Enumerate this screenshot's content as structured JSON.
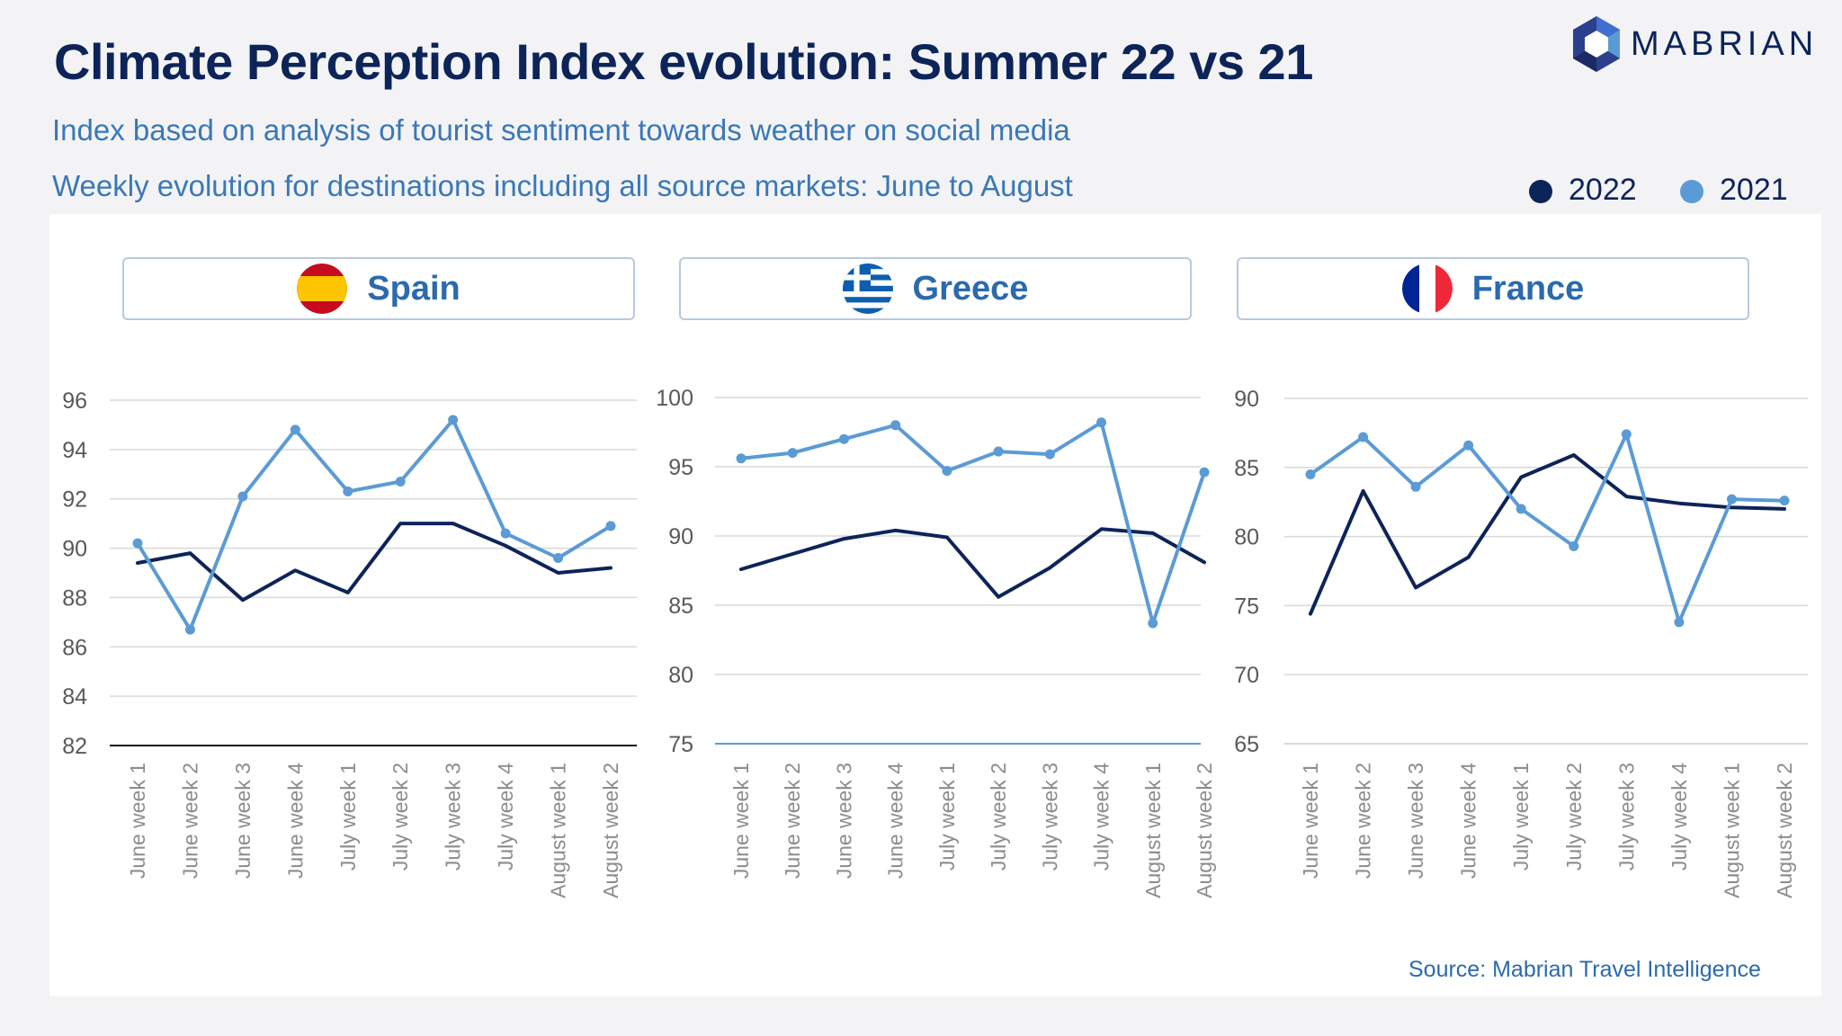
{
  "header": {
    "title": "Climate Perception Index evolution: Summer 22 vs 21",
    "subtitle1": "Index based on analysis of tourist sentiment towards weather on social media",
    "subtitle2": "Weekly evolution for destinations including all source markets: June to August"
  },
  "brand": {
    "name": "MABRIAN",
    "logo_icon": "hexagon-logo-icon"
  },
  "legend": [
    {
      "label": "2022",
      "color": "#0d2459"
    },
    {
      "label": "2021",
      "color": "#5b9bd5"
    }
  ],
  "source": "Source: Mabrian Travel Intelligence",
  "chart_data": [
    {
      "type": "line",
      "country": "Spain",
      "flag_icon": "spain-flag-icon",
      "categories": [
        "June week 1",
        "June week 2",
        "June week 3",
        "June week 4",
        "July week 1",
        "July week 2",
        "July week 3",
        "July week 4",
        "August week 1",
        "August week 2"
      ],
      "ylim": [
        82,
        96
      ],
      "yticks": [
        82,
        84,
        86,
        88,
        90,
        92,
        94,
        96
      ],
      "series": [
        {
          "name": "2022",
          "color": "#0d2459",
          "values": [
            89.4,
            89.8,
            87.9,
            89.1,
            88.2,
            91.0,
            91.0,
            90.1,
            89.0,
            89.2
          ]
        },
        {
          "name": "2021",
          "color": "#5b9bd5",
          "values": [
            90.2,
            86.7,
            92.1,
            94.8,
            92.3,
            92.7,
            95.2,
            90.6,
            89.6,
            90.9
          ]
        }
      ]
    },
    {
      "type": "line",
      "country": "Greece",
      "flag_icon": "greece-flag-icon",
      "categories": [
        "June week 1",
        "June week 2",
        "June week 3",
        "June week 4",
        "July week 1",
        "July week 2",
        "July week 3",
        "July week 4",
        "August week 1",
        "August week 2"
      ],
      "ylim": [
        75,
        100
      ],
      "yticks": [
        75,
        80,
        85,
        90,
        95,
        100
      ],
      "series": [
        {
          "name": "2022",
          "color": "#0d2459",
          "values": [
            87.6,
            88.7,
            89.8,
            90.4,
            89.9,
            85.6,
            87.7,
            90.5,
            90.2,
            88.1
          ]
        },
        {
          "name": "2021",
          "color": "#5b9bd5",
          "values": [
            95.6,
            96.0,
            97.0,
            98.0,
            94.7,
            96.1,
            95.9,
            98.2,
            83.7,
            94.6
          ]
        }
      ]
    },
    {
      "type": "line",
      "country": "France",
      "flag_icon": "france-flag-icon",
      "categories": [
        "June week 1",
        "June week 2",
        "June week 3",
        "June week 4",
        "July week 1",
        "July week 2",
        "July week 3",
        "July week 4",
        "August week 1",
        "August week 2"
      ],
      "ylim": [
        65,
        90
      ],
      "yticks": [
        65,
        70,
        75,
        80,
        85,
        90
      ],
      "series": [
        {
          "name": "2022",
          "color": "#0d2459",
          "values": [
            74.4,
            83.3,
            76.3,
            78.5,
            84.3,
            85.9,
            82.9,
            82.4,
            82.1,
            82.0
          ]
        },
        {
          "name": "2021",
          "color": "#5b9bd5",
          "values": [
            84.5,
            87.2,
            83.6,
            86.6,
            82.0,
            79.3,
            87.4,
            73.8,
            82.7,
            82.6
          ]
        }
      ]
    }
  ]
}
